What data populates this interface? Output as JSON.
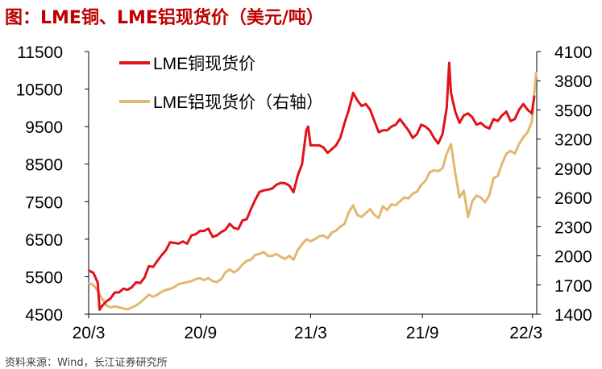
{
  "title": "图：LME铜、LME铝现货价（美元/吨）",
  "source": "资料来源：Wind，长江证券研究所",
  "chart_data": {
    "type": "line",
    "x_ticks": [
      "20/3",
      "20/9",
      "21/3",
      "21/9",
      "22/3"
    ],
    "y_left": {
      "ticks": [
        "4500",
        "5500",
        "6500",
        "7500",
        "8500",
        "9500",
        "10500",
        "11500"
      ],
      "range": [
        4500,
        11500
      ]
    },
    "y_right": {
      "ticks": [
        "1400",
        "1700",
        "2000",
        "2300",
        "2600",
        "2900",
        "3200",
        "3500",
        "3800",
        "4100"
      ],
      "range": [
        1400,
        4100
      ]
    },
    "grid": false,
    "legend_position": "top-left",
    "series": [
      {
        "name": "LME铜现货价",
        "axis": "left",
        "color": "#e0121a",
        "points": [
          [
            "2020-03-02",
            5660
          ],
          [
            "2020-03-09",
            5600
          ],
          [
            "2020-03-16",
            5340
          ],
          [
            "2020-03-19",
            4620
          ],
          [
            "2020-03-23",
            4720
          ],
          [
            "2020-03-30",
            4840
          ],
          [
            "2020-04-06",
            4920
          ],
          [
            "2020-04-13",
            5080
          ],
          [
            "2020-04-20",
            5080
          ],
          [
            "2020-04-27",
            5180
          ],
          [
            "2020-05-04",
            5150
          ],
          [
            "2020-05-11",
            5220
          ],
          [
            "2020-05-18",
            5350
          ],
          [
            "2020-05-25",
            5330
          ],
          [
            "2020-06-01",
            5480
          ],
          [
            "2020-06-08",
            5780
          ],
          [
            "2020-06-15",
            5760
          ],
          [
            "2020-06-22",
            5920
          ],
          [
            "2020-06-29",
            6070
          ],
          [
            "2020-07-06",
            6200
          ],
          [
            "2020-07-13",
            6420
          ],
          [
            "2020-07-20",
            6400
          ],
          [
            "2020-07-27",
            6380
          ],
          [
            "2020-08-03",
            6440
          ],
          [
            "2020-08-10",
            6380
          ],
          [
            "2020-08-17",
            6600
          ],
          [
            "2020-08-24",
            6630
          ],
          [
            "2020-08-31",
            6720
          ],
          [
            "2020-09-07",
            6720
          ],
          [
            "2020-09-14",
            6780
          ],
          [
            "2020-09-21",
            6560
          ],
          [
            "2020-09-28",
            6600
          ],
          [
            "2020-10-05",
            6690
          ],
          [
            "2020-10-12",
            6750
          ],
          [
            "2020-10-19",
            6910
          ],
          [
            "2020-10-26",
            6800
          ],
          [
            "2020-11-02",
            6770
          ],
          [
            "2020-11-09",
            7000
          ],
          [
            "2020-11-16",
            7030
          ],
          [
            "2020-11-23",
            7300
          ],
          [
            "2020-11-30",
            7550
          ],
          [
            "2020-12-07",
            7760
          ],
          [
            "2020-12-14",
            7800
          ],
          [
            "2020-12-21",
            7820
          ],
          [
            "2020-12-28",
            7850
          ],
          [
            "2021-01-04",
            7950
          ],
          [
            "2021-01-11",
            8000
          ],
          [
            "2021-01-18",
            7990
          ],
          [
            "2021-01-25",
            7930
          ],
          [
            "2021-02-01",
            7750
          ],
          [
            "2021-02-08",
            8200
          ],
          [
            "2021-02-15",
            8500
          ],
          [
            "2021-02-22",
            9400
          ],
          [
            "2021-02-25",
            9500
          ],
          [
            "2021-03-01",
            9000
          ],
          [
            "2021-03-08",
            9000
          ],
          [
            "2021-03-15",
            9000
          ],
          [
            "2021-03-22",
            8950
          ],
          [
            "2021-03-29",
            8800
          ],
          [
            "2021-04-05",
            8900
          ],
          [
            "2021-04-12",
            9000
          ],
          [
            "2021-04-19",
            9200
          ],
          [
            "2021-04-26",
            9600
          ],
          [
            "2021-05-03",
            9950
          ],
          [
            "2021-05-10",
            10400
          ],
          [
            "2021-05-17",
            10200
          ],
          [
            "2021-05-24",
            10050
          ],
          [
            "2021-05-31",
            10100
          ],
          [
            "2021-06-07",
            9950
          ],
          [
            "2021-06-14",
            9650
          ],
          [
            "2021-06-21",
            9350
          ],
          [
            "2021-06-28",
            9400
          ],
          [
            "2021-07-05",
            9400
          ],
          [
            "2021-07-12",
            9500
          ],
          [
            "2021-07-19",
            9550
          ],
          [
            "2021-07-26",
            9700
          ],
          [
            "2021-08-02",
            9550
          ],
          [
            "2021-08-09",
            9400
          ],
          [
            "2021-08-16",
            9200
          ],
          [
            "2021-08-23",
            9300
          ],
          [
            "2021-08-30",
            9550
          ],
          [
            "2021-09-06",
            9500
          ],
          [
            "2021-09-13",
            9400
          ],
          [
            "2021-09-20",
            9200
          ],
          [
            "2021-09-27",
            9050
          ],
          [
            "2021-10-04",
            9300
          ],
          [
            "2021-10-11",
            10000
          ],
          [
            "2021-10-15",
            11200
          ],
          [
            "2021-10-18",
            10400
          ],
          [
            "2021-10-25",
            9900
          ],
          [
            "2021-11-01",
            9600
          ],
          [
            "2021-11-08",
            9800
          ],
          [
            "2021-11-15",
            9850
          ],
          [
            "2021-11-22",
            9750
          ],
          [
            "2021-11-29",
            9550
          ],
          [
            "2021-12-06",
            9600
          ],
          [
            "2021-12-13",
            9500
          ],
          [
            "2021-12-20",
            9450
          ],
          [
            "2021-12-27",
            9700
          ],
          [
            "2022-01-03",
            9650
          ],
          [
            "2022-01-10",
            9800
          ],
          [
            "2022-01-17",
            9900
          ],
          [
            "2022-01-24",
            9650
          ],
          [
            "2022-01-31",
            9700
          ],
          [
            "2022-02-07",
            9950
          ],
          [
            "2022-02-14",
            10100
          ],
          [
            "2022-02-21",
            9950
          ],
          [
            "2022-02-28",
            9850
          ],
          [
            "2022-03-02",
            10100
          ],
          [
            "2022-03-04",
            10300
          ]
        ]
      },
      {
        "name": "LME铝现货价（右轴）",
        "axis": "right",
        "color": "#e2b870",
        "points": [
          [
            "2020-03-02",
            1720
          ],
          [
            "2020-03-09",
            1700
          ],
          [
            "2020-03-16",
            1640
          ],
          [
            "2020-03-23",
            1560
          ],
          [
            "2020-03-30",
            1490
          ],
          [
            "2020-04-06",
            1470
          ],
          [
            "2020-04-13",
            1480
          ],
          [
            "2020-04-20",
            1470
          ],
          [
            "2020-04-27",
            1460
          ],
          [
            "2020-05-04",
            1450
          ],
          [
            "2020-05-11",
            1470
          ],
          [
            "2020-05-18",
            1490
          ],
          [
            "2020-05-25",
            1520
          ],
          [
            "2020-06-01",
            1560
          ],
          [
            "2020-06-08",
            1600
          ],
          [
            "2020-06-15",
            1580
          ],
          [
            "2020-06-22",
            1600
          ],
          [
            "2020-06-29",
            1630
          ],
          [
            "2020-07-06",
            1650
          ],
          [
            "2020-07-13",
            1660
          ],
          [
            "2020-07-20",
            1680
          ],
          [
            "2020-07-27",
            1710
          ],
          [
            "2020-08-03",
            1720
          ],
          [
            "2020-08-10",
            1730
          ],
          [
            "2020-08-17",
            1740
          ],
          [
            "2020-08-24",
            1760
          ],
          [
            "2020-08-31",
            1770
          ],
          [
            "2020-09-07",
            1750
          ],
          [
            "2020-09-14",
            1770
          ],
          [
            "2020-09-21",
            1740
          ],
          [
            "2020-09-28",
            1730
          ],
          [
            "2020-10-05",
            1760
          ],
          [
            "2020-10-12",
            1830
          ],
          [
            "2020-10-19",
            1860
          ],
          [
            "2020-10-26",
            1830
          ],
          [
            "2020-11-02",
            1860
          ],
          [
            "2020-11-09",
            1910
          ],
          [
            "2020-11-16",
            1950
          ],
          [
            "2020-11-23",
            1960
          ],
          [
            "2020-11-30",
            2010
          ],
          [
            "2020-12-07",
            2020
          ],
          [
            "2020-12-14",
            2040
          ],
          [
            "2020-12-21",
            2000
          ],
          [
            "2020-12-28",
            2000
          ],
          [
            "2021-01-04",
            2020
          ],
          [
            "2021-01-11",
            1990
          ],
          [
            "2021-01-18",
            1970
          ],
          [
            "2021-01-25",
            2000
          ],
          [
            "2021-02-01",
            1960
          ],
          [
            "2021-02-08",
            2060
          ],
          [
            "2021-02-15",
            2120
          ],
          [
            "2021-02-22",
            2170
          ],
          [
            "2021-03-01",
            2150
          ],
          [
            "2021-03-08",
            2170
          ],
          [
            "2021-03-15",
            2200
          ],
          [
            "2021-03-22",
            2210
          ],
          [
            "2021-03-29",
            2180
          ],
          [
            "2021-04-05",
            2240
          ],
          [
            "2021-04-12",
            2260
          ],
          [
            "2021-04-19",
            2300
          ],
          [
            "2021-04-26",
            2330
          ],
          [
            "2021-05-03",
            2450
          ],
          [
            "2021-05-10",
            2520
          ],
          [
            "2021-05-17",
            2420
          ],
          [
            "2021-05-24",
            2400
          ],
          [
            "2021-05-31",
            2440
          ],
          [
            "2021-06-07",
            2480
          ],
          [
            "2021-06-14",
            2420
          ],
          [
            "2021-06-21",
            2390
          ],
          [
            "2021-06-28",
            2510
          ],
          [
            "2021-07-05",
            2470
          ],
          [
            "2021-07-12",
            2530
          ],
          [
            "2021-07-19",
            2520
          ],
          [
            "2021-07-26",
            2560
          ],
          [
            "2021-08-02",
            2600
          ],
          [
            "2021-08-09",
            2590
          ],
          [
            "2021-08-16",
            2640
          ],
          [
            "2021-08-23",
            2660
          ],
          [
            "2021-08-30",
            2730
          ],
          [
            "2021-09-06",
            2770
          ],
          [
            "2021-09-13",
            2860
          ],
          [
            "2021-09-20",
            2880
          ],
          [
            "2021-09-27",
            2870
          ],
          [
            "2021-10-04",
            2900
          ],
          [
            "2021-10-11",
            3050
          ],
          [
            "2021-10-18",
            3150
          ],
          [
            "2021-10-25",
            2850
          ],
          [
            "2021-11-01",
            2600
          ],
          [
            "2021-11-08",
            2670
          ],
          [
            "2021-11-15",
            2400
          ],
          [
            "2021-11-22",
            2560
          ],
          [
            "2021-11-29",
            2620
          ],
          [
            "2021-12-06",
            2600
          ],
          [
            "2021-12-13",
            2550
          ],
          [
            "2021-12-20",
            2620
          ],
          [
            "2021-12-27",
            2800
          ],
          [
            "2022-01-03",
            2820
          ],
          [
            "2022-01-10",
            2950
          ],
          [
            "2022-01-17",
            3050
          ],
          [
            "2022-01-24",
            3080
          ],
          [
            "2022-01-31",
            3050
          ],
          [
            "2022-02-07",
            3150
          ],
          [
            "2022-02-14",
            3220
          ],
          [
            "2022-02-21",
            3270
          ],
          [
            "2022-02-28",
            3380
          ],
          [
            "2022-03-03",
            3600
          ],
          [
            "2022-03-07",
            3880
          ]
        ]
      }
    ]
  }
}
